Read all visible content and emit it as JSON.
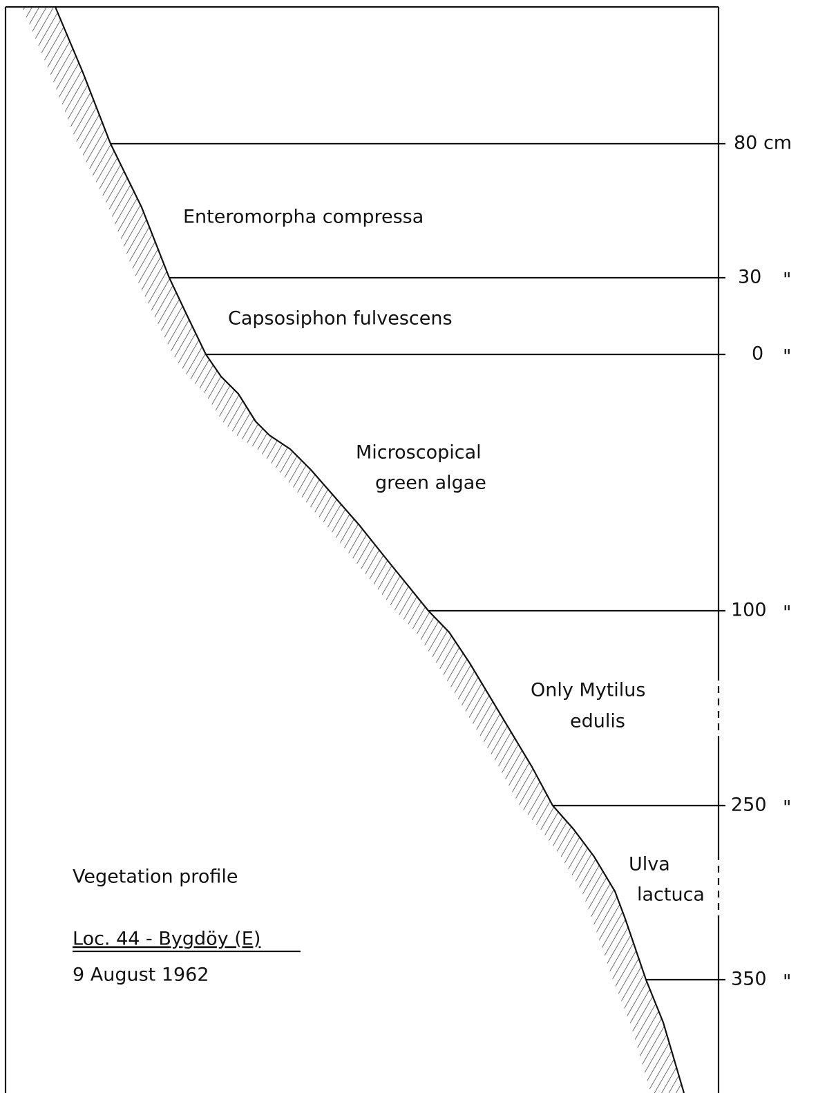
{
  "levels": [
    {
      "label": "80 cm"
    },
    {
      "label": "30",
      "ditto": "\""
    },
    {
      "label": "0",
      "ditto": "\""
    },
    {
      "label": "100",
      "ditto": "\""
    },
    {
      "label": "250",
      "ditto": "\""
    },
    {
      "label": "350",
      "ditto": "\""
    }
  ],
  "zones": [
    {
      "lines": [
        "Enteromorpha compressa"
      ]
    },
    {
      "lines": [
        "Capsosiphon fulvescens"
      ]
    },
    {
      "lines": [
        "Microscopical",
        "green algae"
      ]
    },
    {
      "lines": [
        "Only Mytilus",
        "edulis"
      ]
    },
    {
      "lines": [
        "Ulva",
        "lactuca"
      ]
    }
  ],
  "caption": {
    "title": "Vegetation profile",
    "location": "Loc. 44 - Bygdöy (E)",
    "date": "9 August 1962"
  }
}
